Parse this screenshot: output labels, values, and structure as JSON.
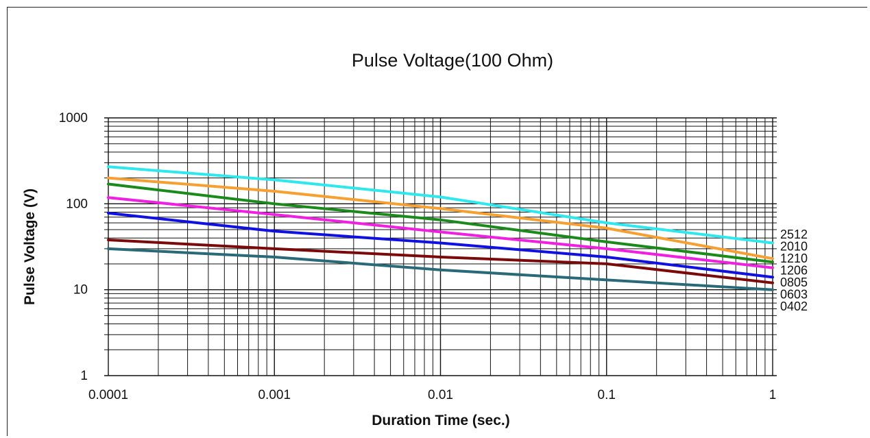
{
  "chart_data": {
    "type": "line",
    "title": "Pulse Voltage(100 Ohm)",
    "xlabel": "Duration Time (sec.)",
    "ylabel": "Pulse Voltage (V)",
    "x_scale": "log",
    "y_scale": "log",
    "xlim": [
      0.0001,
      1
    ],
    "ylim": [
      1,
      1000
    ],
    "grid": true,
    "x_ticks": [
      "0.0001",
      "0.001",
      "0.01",
      "0.1",
      "1"
    ],
    "y_ticks": [
      "1",
      "10",
      "100",
      "1000"
    ],
    "x": [
      0.0001,
      0.001,
      0.01,
      0.1,
      1
    ],
    "series": [
      {
        "name": "2512",
        "color": "#2ee8ee",
        "values": [
          270,
          190,
          120,
          60,
          35
        ]
      },
      {
        "name": "2010",
        "color": "#f5a030",
        "values": [
          200,
          140,
          88,
          52,
          23
        ]
      },
      {
        "name": "1210",
        "color": "#1a8a1a",
        "values": [
          170,
          100,
          65,
          36,
          21
        ]
      },
      {
        "name": "1206",
        "color": "#f020e0",
        "values": [
          118,
          75,
          47,
          30,
          18
        ]
      },
      {
        "name": "0805",
        "color": "#1010e0",
        "values": [
          78,
          48,
          35,
          24,
          14
        ]
      },
      {
        "name": "0603",
        "color": "#7a0a0a",
        "values": [
          38,
          30,
          24,
          20,
          12
        ]
      },
      {
        "name": "0402",
        "color": "#2a6a78",
        "values": [
          30,
          24,
          17,
          13,
          10
        ]
      }
    ]
  }
}
